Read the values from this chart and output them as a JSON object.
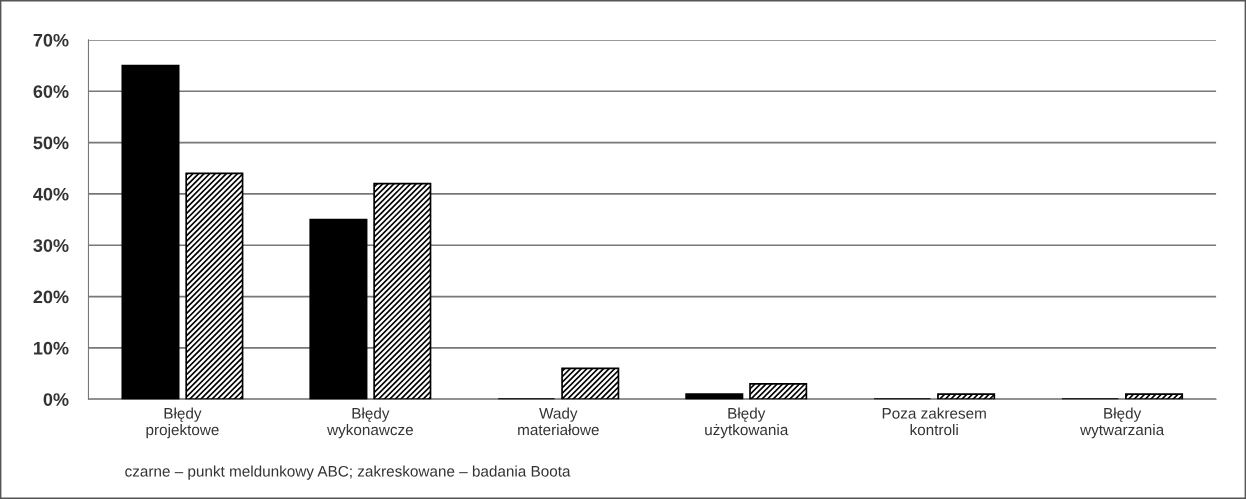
{
  "chart_data": {
    "type": "bar",
    "categories": [
      "Błędy\nprojektowe",
      "Błędy\nwykonawcze",
      "Wady\nmateriałowe",
      "Błędy\nużytkowania",
      "Poza zakresem\nkontroli",
      "Błędy\nwytwarzania"
    ],
    "series": [
      {
        "color": "#000000",
        "values": [
          65,
          35,
          0,
          1,
          0,
          0
        ]
      },
      {
        "color": "#000000",
        "values": [
          44,
          42,
          6,
          3,
          1,
          1
        ]
      }
    ],
    "ylim": [
      0,
      70
    ],
    "yticks": [
      {
        "value": 0,
        "label": "0%"
      },
      {
        "value": 10,
        "label": "10%"
      },
      {
        "value": 20,
        "label": "20%"
      },
      {
        "value": 30,
        "label": "30%"
      },
      {
        "value": 40,
        "label": "40%"
      },
      {
        "value": 50,
        "label": "50%"
      },
      {
        "value": 60,
        "label": "60%"
      },
      {
        "value": 70,
        "label": "70%"
      }
    ],
    "grid": "y",
    "annotations": [
      "czarne – punkt meldunkowy ABC; zakreskowane – badania Boota"
    ]
  }
}
